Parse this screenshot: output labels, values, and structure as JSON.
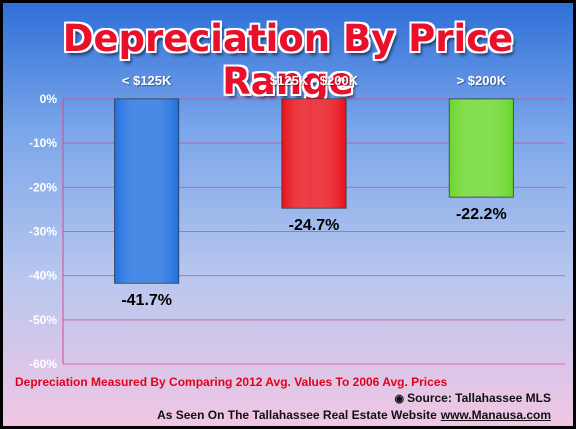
{
  "chart_data": {
    "type": "bar",
    "title": "Depreciation By Price Range",
    "categories": [
      "< $125K",
      "$125K - $200K",
      "> $200K"
    ],
    "values": [
      -41.7,
      -24.7,
      -22.2
    ],
    "value_labels": [
      "-41.7%",
      "-24.7%",
      "-22.2%"
    ],
    "colors": [
      "#1f6fe0",
      "#e8101a",
      "#6ad62a"
    ],
    "ylim": [
      -60,
      0
    ],
    "yticks": [
      0,
      -10,
      -20,
      -30,
      -40,
      -50,
      -60
    ],
    "ytick_labels": [
      "0%",
      "-10%",
      "-20%",
      "-30%",
      "-40%",
      "-50%",
      "-60%"
    ],
    "grid": true
  },
  "footer": {
    "note": "Depreciation Measured By Comparing 2012 Avg. Values To 2006 Avg. Prices",
    "source": "Source: Tallahassee MLS",
    "credit": "As Seen On The Tallahassee Real Estate Website",
    "link": "www.Manausa.com"
  }
}
